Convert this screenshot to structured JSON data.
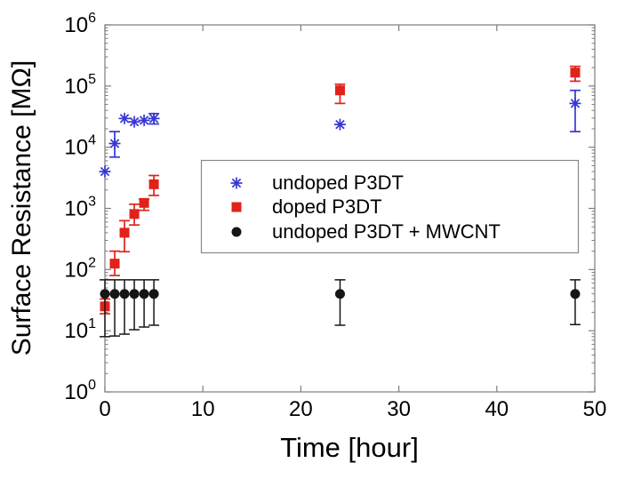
{
  "figure": {
    "background": "#ffffff",
    "box_color": "#7d7d7d",
    "tick_color": "#7d7d7d"
  },
  "chart_data": {
    "type": "scatter",
    "title": "",
    "xlabel": "Time [hour]",
    "ylabel": "Surface Resistance [MΩ]",
    "grid": false,
    "x_axis": {
      "min": 0,
      "max": 50,
      "ticks": [
        0,
        10,
        20,
        30,
        40,
        50
      ]
    },
    "y_axis": {
      "scale": "log",
      "min_exp": 0,
      "max_exp": 6,
      "tick_base": "10",
      "tick_exponents": [
        0,
        1,
        2,
        3,
        4,
        5,
        6
      ]
    },
    "legend": {
      "position": "upper-left-inside",
      "border_color": "#888888",
      "background": "#ffffff"
    },
    "series": [
      {
        "name": "undoped P3DT",
        "marker": "asterisk",
        "color": "#3636d2",
        "points": [
          {
            "x": 0,
            "y": 4000
          },
          {
            "x": 1,
            "y": 11500,
            "lo": 6900,
            "hi": 18000
          },
          {
            "x": 2,
            "y": 29500
          },
          {
            "x": 3,
            "y": 26000
          },
          {
            "x": 4,
            "y": 27500
          },
          {
            "x": 5,
            "y": 29500,
            "lo": 24000,
            "hi": 35500
          },
          {
            "x": 24,
            "y": 23500
          },
          {
            "x": 48,
            "y": 52000,
            "lo": 18000,
            "hi": 85000
          }
        ]
      },
      {
        "name": "doped P3DT",
        "marker": "square",
        "color": "#e0221a",
        "points": [
          {
            "x": 0,
            "y": 25,
            "lo": 19,
            "hi": 33
          },
          {
            "x": 1,
            "y": 125,
            "lo": 80,
            "hi": 200
          },
          {
            "x": 2,
            "y": 400,
            "lo": 196,
            "hi": 630
          },
          {
            "x": 3,
            "y": 810,
            "lo": 535,
            "hi": 1170
          },
          {
            "x": 4,
            "y": 1230,
            "lo": 930,
            "hi": 1420
          },
          {
            "x": 5,
            "y": 2480,
            "lo": 1630,
            "hi": 3450
          },
          {
            "x": 24,
            "y": 85000,
            "lo": 52000,
            "hi": 107000
          },
          {
            "x": 48,
            "y": 166000,
            "lo": 120000,
            "hi": 210000
          }
        ]
      },
      {
        "name": "undoped P3DT + MWCNT",
        "marker": "circle",
        "color": "#161616",
        "points": [
          {
            "x": 0,
            "y": 40,
            "lo": 8,
            "hi": 68
          },
          {
            "x": 1,
            "y": 40,
            "lo": 8.2,
            "hi": 68
          },
          {
            "x": 2,
            "y": 40,
            "lo": 8.8,
            "hi": 68
          },
          {
            "x": 3,
            "y": 40,
            "lo": 10.4,
            "hi": 68
          },
          {
            "x": 4,
            "y": 40,
            "lo": 11.5,
            "hi": 68
          },
          {
            "x": 5,
            "y": 40,
            "lo": 12.3,
            "hi": 68
          },
          {
            "x": 24,
            "y": 40,
            "lo": 12.3,
            "hi": 68
          },
          {
            "x": 48,
            "y": 40,
            "lo": 12.6,
            "hi": 68
          }
        ]
      }
    ]
  }
}
